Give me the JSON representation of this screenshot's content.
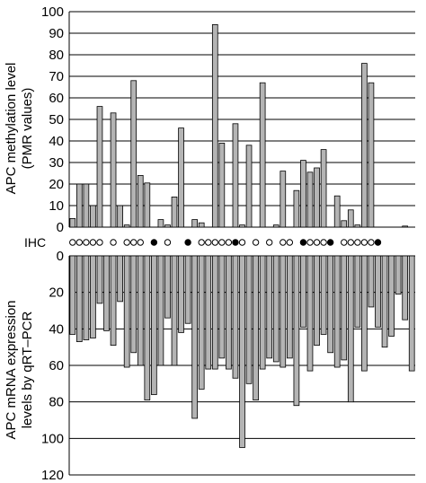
{
  "chart_data": [
    {
      "type": "bar",
      "ylabel_lines": [
        "APC methylation level",
        "(PMR values)"
      ],
      "ylim": [
        0,
        100
      ],
      "yticks": [
        "0",
        "10",
        "20",
        "30",
        "40",
        "50",
        "60",
        "70",
        "80",
        "90",
        "100"
      ],
      "grid": true,
      "values": [
        4,
        20,
        20,
        10,
        56,
        0,
        53,
        10,
        1,
        68,
        24,
        20.5,
        0,
        3.5,
        1,
        14,
        46,
        0,
        3.5,
        2,
        0,
        94,
        39,
        0,
        48,
        1,
        38,
        0,
        67,
        0,
        1,
        26,
        0,
        17,
        31,
        25.5,
        27.5,
        36,
        0,
        14.5,
        3,
        8,
        1,
        76,
        67,
        0,
        0,
        0,
        0,
        0.5,
        0
      ],
      "bar_color": "#b4b4b4"
    },
    {
      "type": "markers",
      "label": "IHC",
      "markers": [
        "open",
        "open",
        "open",
        "open",
        "open",
        "",
        "open",
        "",
        "open",
        "open",
        "open",
        "",
        "filled",
        "",
        "open",
        "",
        "",
        "filled",
        "",
        "open",
        "open",
        "open",
        "open",
        "open",
        "filled",
        "open",
        "",
        "open",
        "",
        "open",
        "",
        "open",
        "open",
        "",
        "filled",
        "open",
        "open",
        "open",
        "filled",
        "",
        "open",
        "open",
        "open",
        "open",
        "open",
        "filled",
        "",
        "",
        "",
        "",
        ""
      ]
    },
    {
      "type": "bar",
      "orientation": "downward",
      "ylabel_lines": [
        "APC mRNA expression",
        "levels by qRT–PCR"
      ],
      "ylim": [
        0,
        120
      ],
      "yticks": [
        "0",
        "20",
        "40",
        "60",
        "80",
        "100",
        "120"
      ],
      "grid": true,
      "values": [
        43,
        47,
        46,
        45,
        26,
        41,
        49,
        25,
        61,
        53,
        60,
        79,
        76,
        60,
        34,
        60,
        42,
        37,
        89,
        73,
        62,
        62,
        56,
        62,
        67,
        105,
        70,
        79,
        62,
        56,
        58,
        61,
        56,
        82,
        39,
        63,
        49,
        43,
        53,
        61,
        57,
        80,
        39,
        63,
        28,
        39,
        50,
        44,
        21,
        35,
        63
      ]
    }
  ]
}
